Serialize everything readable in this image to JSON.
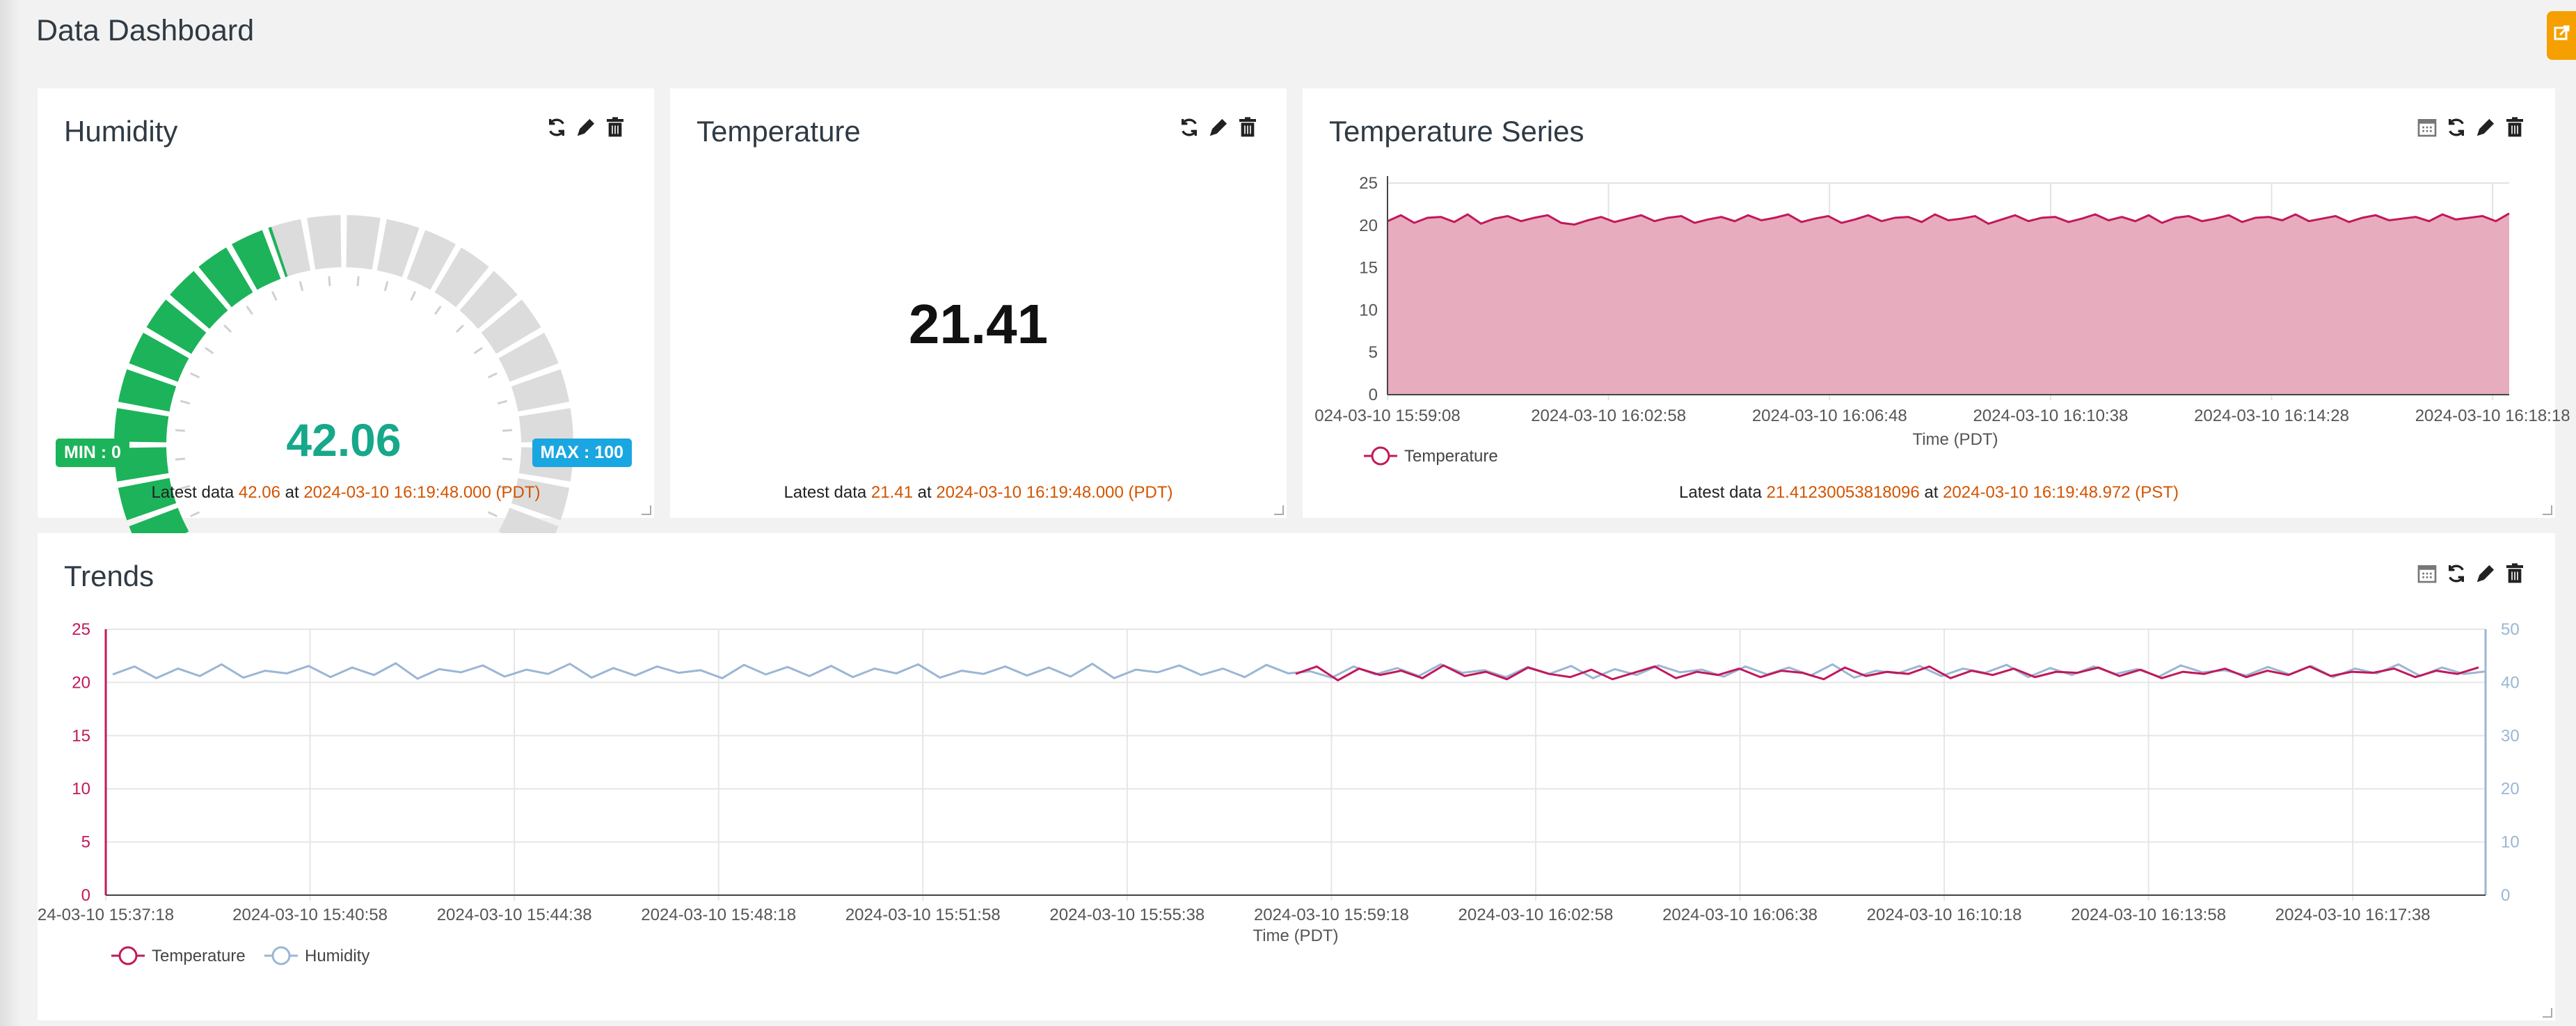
{
  "header": {
    "title": "Data Dashboard"
  },
  "colors": {
    "accent": "#f5a000",
    "gauge_fill": "#1db35a",
    "gauge_empty": "#dcdcdc",
    "gauge_value": "#16a88a",
    "temperature": "#c2185b",
    "temperature_area": "#e6a8ba",
    "humidity": "#9ab6d4",
    "min_badge": "#1db35a",
    "max_badge": "#1aa6e0",
    "highlight": "#d35400"
  },
  "icons": [
    "calendar-icon",
    "refresh-icon",
    "pencil-icon",
    "trash-icon",
    "export-icon"
  ],
  "humidity_card": {
    "title": "Humidity",
    "value": "42.06",
    "min_label": "MIN : 0",
    "max_label": "MAX : 100",
    "gauge": {
      "min": 0,
      "max": 100,
      "value": 42.06
    },
    "footer_prefix": "Latest data ",
    "footer_value": "42.06",
    "footer_mid": " at ",
    "footer_time": "2024-03-10 16:19:48.000 (PDT)"
  },
  "temperature_card": {
    "title": "Temperature",
    "value": "21.41",
    "footer_prefix": "Latest data ",
    "footer_value": "21.41",
    "footer_mid": " at ",
    "footer_time": "2024-03-10 16:19:48.000 (PDT)"
  },
  "series_card": {
    "title": "Temperature Series",
    "footer_prefix": "Latest data ",
    "footer_value": "21.41230053818096",
    "footer_mid": " at ",
    "footer_time": "2024-03-10 16:19:48.972 (PST)"
  },
  "trends_card": {
    "title": "Trends"
  },
  "chart_data": [
    {
      "type": "area",
      "xlabel": "Time (PDT)",
      "ylabel": "",
      "ylim": [
        0,
        25
      ],
      "yticks": [
        "0",
        "5",
        "10",
        "15",
        "20",
        "25"
      ],
      "xticks": [
        "024-03-10 15:59:08",
        "2024-03-10 16:02:58",
        "2024-03-10 16:06:48",
        "2024-03-10 16:10:38",
        "2024-03-10 16:14:28",
        "2024-03-10 16:18:18"
      ],
      "grid": true,
      "legend": "bottom-left",
      "series": [
        {
          "name": "Temperature",
          "values": [
            20.5,
            21.2,
            20.3,
            20.9,
            21.0,
            20.4,
            21.3,
            20.2,
            20.8,
            21.1,
            20.5,
            20.9,
            21.2,
            20.3,
            20.1,
            20.6,
            21.0,
            20.4,
            20.8,
            21.2,
            20.5,
            20.9,
            21.1,
            20.3,
            20.7,
            21.0,
            20.5,
            21.2,
            20.6,
            20.9,
            21.3,
            20.4,
            20.8,
            21.1,
            20.3,
            20.7,
            21.2,
            20.5,
            20.9,
            21.0,
            20.4,
            21.3,
            20.6,
            20.8,
            21.1,
            20.2,
            20.7,
            21.2,
            20.5,
            20.9,
            21.0,
            20.4,
            20.8,
            21.3,
            20.6,
            21.0,
            20.5,
            21.2,
            20.3,
            20.9,
            21.1,
            20.5,
            20.8,
            21.2,
            20.4,
            20.9,
            21.0,
            20.6,
            21.3,
            20.5,
            20.8,
            21.1,
            20.4,
            20.9,
            21.2,
            20.6,
            20.8,
            21.0,
            20.5,
            21.3,
            20.7,
            20.9,
            21.1,
            20.5,
            21.41
          ]
        }
      ]
    },
    {
      "type": "line",
      "xlabel": "Time (PDT)",
      "ylabel": "",
      "ylim": [
        0,
        25
      ],
      "y2lim": [
        0,
        50
      ],
      "yticks": [
        "0",
        "5",
        "10",
        "15",
        "20",
        "25"
      ],
      "y2ticks": [
        "0",
        "10",
        "20",
        "30",
        "40",
        "50"
      ],
      "xticks": [
        "24-03-10 15:37:18",
        "2024-03-10 15:40:58",
        "2024-03-10 15:44:38",
        "2024-03-10 15:48:18",
        "2024-03-10 15:51:58",
        "2024-03-10 15:55:38",
        "2024-03-10 15:59:18",
        "2024-03-10 16:02:58",
        "2024-03-10 16:06:38",
        "2024-03-10 16:10:18",
        "2024-03-10 16:13:58",
        "2024-03-10 16:17:38"
      ],
      "grid": true,
      "legend": "bottom-left",
      "series": [
        {
          "name": "Temperature",
          "axis": "left",
          "start_fraction": 0.5,
          "values": [
            20.8,
            21.5,
            20.2,
            21.3,
            20.7,
            21.1,
            20.4,
            21.6,
            20.6,
            21.0,
            20.3,
            21.4,
            20.8,
            20.5,
            21.2,
            20.3,
            20.9,
            21.5,
            20.4,
            21.0,
            20.7,
            21.3,
            20.5,
            21.1,
            20.9,
            20.3,
            21.4,
            20.6,
            21.0,
            20.8,
            21.5,
            20.4,
            21.1,
            20.7,
            21.3,
            20.5,
            21.0,
            20.9,
            21.4,
            20.6,
            21.2,
            20.4,
            21.0,
            20.8,
            21.3,
            20.5,
            21.1,
            20.7,
            21.5,
            20.6,
            21.0,
            20.9,
            21.3,
            20.5,
            21.1,
            20.8,
            21.41
          ]
        },
        {
          "name": "Humidity",
          "axis": "right",
          "values": [
            41.5,
            43.0,
            40.8,
            42.6,
            41.2,
            43.4,
            40.9,
            42.2,
            41.7,
            43.1,
            41.0,
            42.8,
            41.4,
            43.6,
            40.7,
            42.5,
            41.9,
            43.2,
            41.1,
            42.4,
            41.6,
            43.5,
            40.9,
            42.7,
            41.3,
            43.0,
            41.8,
            42.3,
            40.8,
            43.3,
            41.5,
            42.9,
            41.2,
            43.1,
            41.0,
            42.6,
            41.7,
            43.4,
            40.9,
            42.2,
            41.6,
            43.0,
            41.3,
            42.8,
            41.1,
            43.5,
            40.8,
            42.4,
            41.9,
            43.2,
            41.4,
            42.6,
            41.0,
            43.3,
            41.7,
            42.1,
            40.9,
            43.0,
            41.5,
            42.7,
            41.2,
            43.4,
            41.8,
            42.3,
            41.0,
            42.9,
            41.6,
            43.1,
            40.8,
            42.5,
            41.4,
            43.2,
            41.9,
            42.4,
            41.1,
            43.0,
            41.5,
            42.8,
            41.3,
            43.4,
            40.9,
            42.2,
            41.7,
            43.1,
            41.2,
            42.6,
            41.8,
            43.3,
            41.0,
            42.7,
            41.4,
            43.0,
            41.6,
            42.5,
            41.1,
            43.2,
            41.9,
            42.3,
            41.3,
            42.9,
            41.5,
            43.1,
            41.0,
            42.6,
            41.7,
            43.4,
            41.2,
            42.8,
            41.6,
            42.06
          ]
        }
      ]
    }
  ]
}
